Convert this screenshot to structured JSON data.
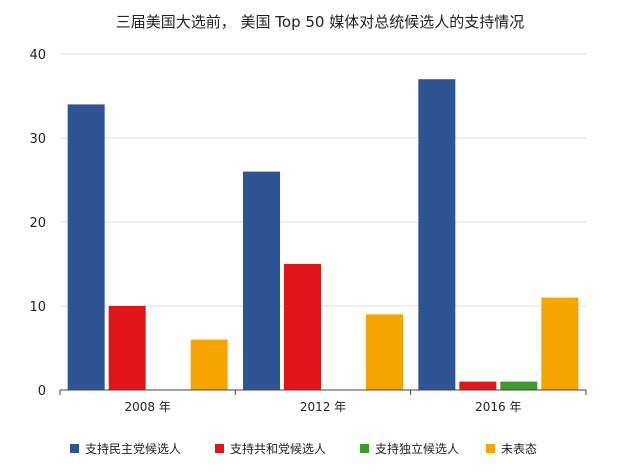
{
  "chart_data": {
    "type": "bar",
    "title": "三届美国大选前， 美国 Top 50 媒体对总统候选人的支持情况",
    "categories": [
      "2008 年",
      "2012 年",
      "2016 年"
    ],
    "series": [
      {
        "name": "支持民主党候选人",
        "color": "#2f5496",
        "values": [
          34,
          26,
          37
        ]
      },
      {
        "name": "支持共和党候选人",
        "color": "#e0161b",
        "values": [
          10,
          15,
          1
        ]
      },
      {
        "name": "支持独立候选人",
        "color": "#3a9a2a",
        "values": [
          0,
          0,
          1
        ]
      },
      {
        "name": "未表态",
        "color": "#f6a500",
        "values": [
          6,
          9,
          11
        ]
      }
    ],
    "ylim": [
      0,
      40
    ],
    "yticks": [
      0,
      10,
      20,
      30,
      40
    ],
    "grid": true,
    "legend_position": "bottom"
  }
}
